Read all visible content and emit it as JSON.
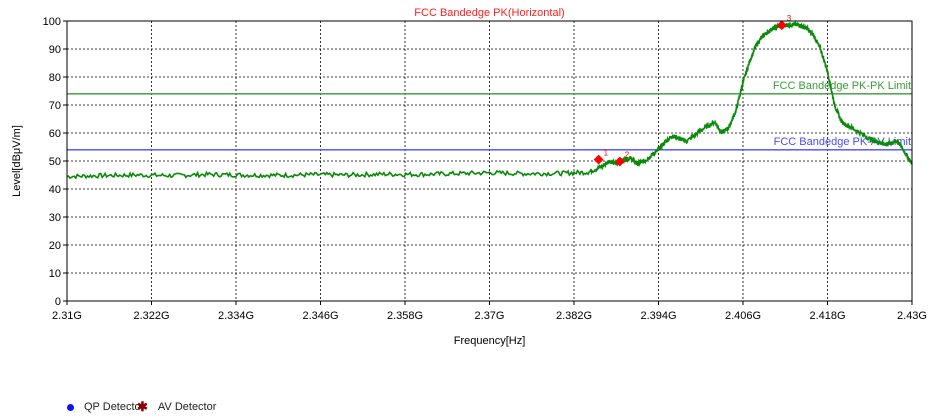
{
  "chart_data": {
    "type": "line",
    "title": "FCC Bandedge PK(Horizontal)",
    "xlabel": "Frequency[Hz]",
    "ylabel": "Level[dBμV/m]",
    "xlim": [
      2.31,
      2.43
    ],
    "ylim": [
      0,
      100
    ],
    "xticks": [
      2.31,
      2.322,
      2.334,
      2.346,
      2.358,
      2.37,
      2.382,
      2.394,
      2.406,
      2.418,
      2.43
    ],
    "xtick_labels": [
      "2.31G",
      "2.322G",
      "2.334G",
      "2.346G",
      "2.358G",
      "2.37G",
      "2.382G",
      "2.394G",
      "2.406G",
      "2.418G",
      "2.43G"
    ],
    "yticks": [
      0,
      10,
      20,
      30,
      40,
      50,
      60,
      70,
      80,
      90,
      100
    ],
    "grid": true,
    "colors": {
      "trace": "#0a8a0a",
      "pk_limit": "#3a9a3a",
      "av_limit": "#4a4aff",
      "title": "#ff2020",
      "marker": "#ff0000",
      "qp_legend": "#1010ff",
      "av_legend": "#8b0000"
    },
    "series": [
      {
        "x": [
          2.31,
          2.315,
          2.32,
          2.325,
          2.33,
          2.335,
          2.34,
          2.345,
          2.35,
          2.355,
          2.36,
          2.365,
          2.37,
          2.375,
          2.38,
          2.384,
          2.386,
          2.387,
          2.388,
          2.389,
          2.39,
          2.391,
          2.392,
          2.393,
          2.394,
          2.395,
          2.396,
          2.397,
          2.398,
          2.4,
          2.402,
          2.403,
          2.404,
          2.405,
          2.406,
          2.407,
          2.408,
          2.409,
          2.41,
          2.411,
          2.412,
          2.413,
          2.414,
          2.415,
          2.416,
          2.417,
          2.418,
          2.419,
          2.42,
          2.422,
          2.424,
          2.425,
          2.426,
          2.427,
          2.428,
          2.429,
          2.43
        ],
        "y": [
          44.5,
          44.8,
          45,
          44.8,
          45.2,
          45,
          44.9,
          45.1,
          45,
          45.3,
          45.2,
          45.5,
          45.8,
          45.5,
          45.6,
          46,
          48,
          50,
          49,
          50.5,
          51,
          49,
          50,
          52,
          54,
          57,
          59,
          58,
          57,
          61,
          64,
          60,
          62,
          68,
          78,
          86,
          92,
          95,
          97,
          98,
          98.5,
          98.8,
          98.5,
          97.5,
          95,
          90,
          82,
          70,
          64,
          61,
          58,
          57,
          56,
          56.5,
          57,
          53,
          49
        ]
      },
      {
        "name": "FCC Bandedge PK-PK Limit",
        "x": [
          2.31,
          2.43
        ],
        "y": [
          74,
          74
        ]
      },
      {
        "name": "FCC Bandedge PK-AV Limit",
        "x": [
          2.31,
          2.43
        ],
        "y": [
          54,
          54
        ]
      }
    ],
    "markers": [
      {
        "label": "1",
        "x": 2.3855,
        "y": 50.5
      },
      {
        "label": "2",
        "x": 2.3885,
        "y": 49.8
      },
      {
        "label": "3",
        "x": 2.4115,
        "y": 98.5
      }
    ],
    "legend": [
      {
        "label": "QP Detector"
      },
      {
        "label": "AV Detector"
      }
    ]
  }
}
